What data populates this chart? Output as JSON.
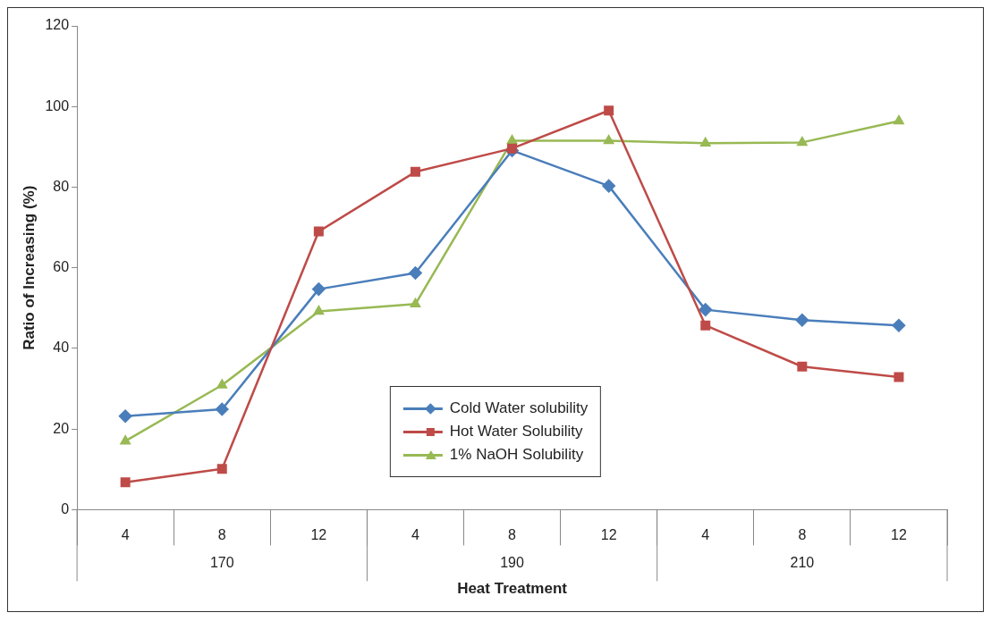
{
  "chart_data": {
    "type": "line",
    "xlabel": "Heat Treatment",
    "ylabel": "Ratio of Increasing (%)",
    "categories": [
      "4",
      "8",
      "12",
      "4",
      "8",
      "12",
      "4",
      "8",
      "12"
    ],
    "annotations": [
      "170",
      "190",
      "210"
    ],
    "ylim": [
      0,
      120
    ],
    "yticks": [
      0,
      20,
      40,
      60,
      80,
      100,
      120
    ],
    "grid": false,
    "legend": "bottom",
    "line_style": "solid",
    "series": [
      {
        "name": "Cold Water solubility",
        "color": "#4a7ebb",
        "marker": "diamond",
        "values": [
          23.2,
          24.9,
          54.7,
          58.7,
          89.1,
          80.3,
          49.6,
          47,
          45.7
        ]
      },
      {
        "name": "Hot Water Solubility",
        "color": "#be4b48",
        "marker": "square",
        "values": [
          6.8,
          10.1,
          69,
          83.8,
          89.6,
          99,
          45.7,
          35.5,
          32.9
        ]
      },
      {
        "name": "1% NaOH Solubility",
        "color": "#98b954",
        "marker": "triangle",
        "values": [
          17,
          30.9,
          49.2,
          51,
          91.5,
          91.5,
          90.9,
          91.1,
          96.4
        ]
      }
    ]
  }
}
